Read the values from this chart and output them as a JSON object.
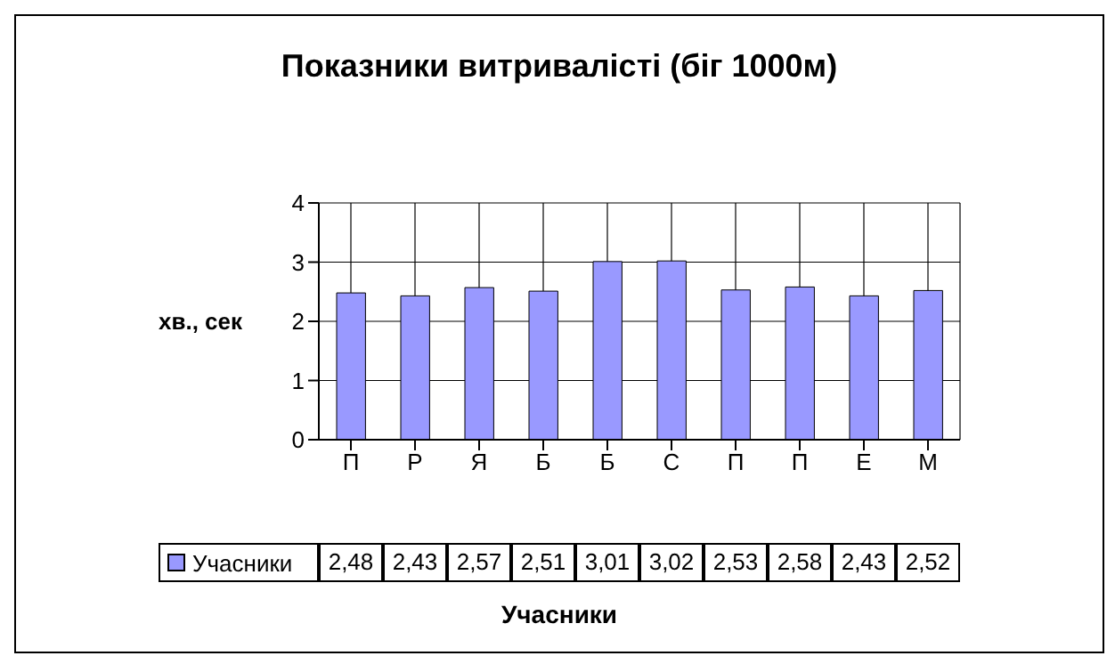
{
  "chart_data": {
    "type": "bar",
    "title": "Показники витривалісті (біг 1000м)",
    "xlabel": "Учасники",
    "ylabel": "хв., сек",
    "categories": [
      "П",
      "Р",
      "Я",
      "Б",
      "Б",
      "С",
      "П",
      "П",
      "Е",
      "М"
    ],
    "series": [
      {
        "name": "Учасники",
        "color": "#9999ff",
        "values": [
          2.48,
          2.43,
          2.57,
          2.51,
          3.01,
          3.02,
          2.53,
          2.58,
          2.43,
          2.52
        ],
        "value_labels": [
          "2,48",
          "2,43",
          "2,57",
          "2,51",
          "3,01",
          "3,02",
          "2,53",
          "2,58",
          "2,43",
          "2,52"
        ]
      }
    ],
    "ylim": [
      0,
      4
    ],
    "yticks": [
      0,
      1,
      2,
      3,
      4
    ],
    "grid": true,
    "legend": "bottom"
  }
}
